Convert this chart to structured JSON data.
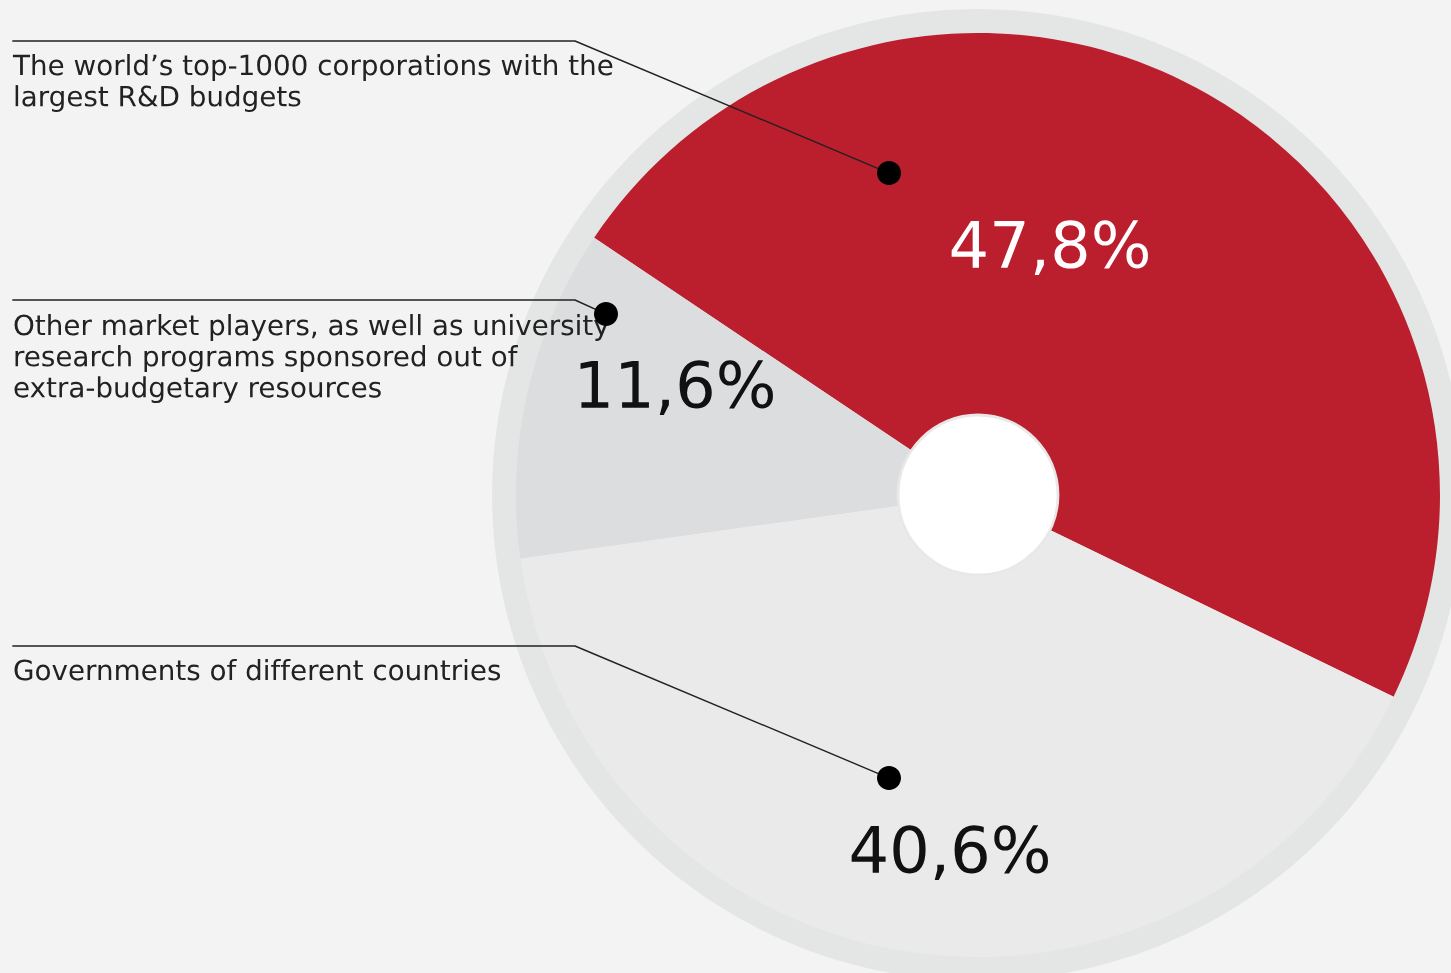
{
  "chart_data": {
    "type": "pie",
    "categories": [
      "The world’s top-1000 corporations with the largest R&D budgets",
      "Other market players, as well as university research programs sponsored out of extra-budgetary resources",
      "Governments of different countries"
    ],
    "values": [
      47.8,
      11.6,
      40.6
    ],
    "colors": [
      "#bb1e2d",
      "#dcdddf",
      "#eaeaeb"
    ],
    "value_labels": [
      "47,8%",
      "11,6%",
      "40,6%"
    ],
    "legend": false
  }
}
